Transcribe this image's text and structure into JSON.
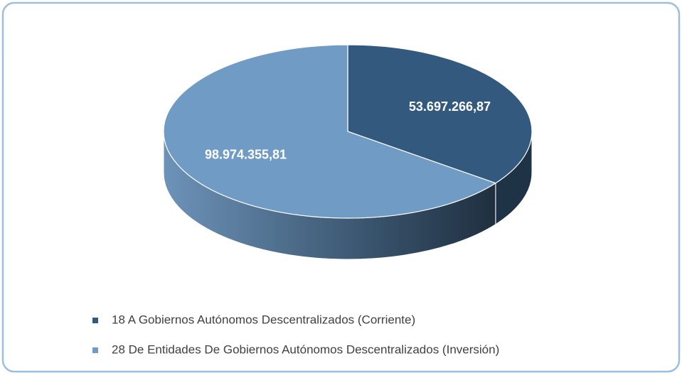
{
  "chart_data": {
    "type": "pie",
    "categories": [
      "18 A Gobiernos Autónomos Descentralizados (Corriente)",
      "28 De Entidades De Gobiernos Autónomos Descentralizados (Inversión)"
    ],
    "values": [
      53697266.87,
      98974355.81
    ],
    "value_labels": [
      "53.697.266,87",
      "98.974.355,81"
    ],
    "colors": [
      "#335a7e",
      "#6f9bc4"
    ],
    "legend": "bottom"
  }
}
